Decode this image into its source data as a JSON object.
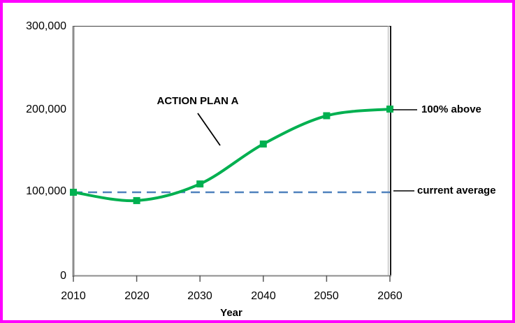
{
  "chart_data": {
    "type": "line",
    "title": "",
    "xlabel": "Year",
    "ylabel": "",
    "x": [
      2010,
      2020,
      2030,
      2040,
      2050,
      2060
    ],
    "xtick_labels": [
      "2010",
      "2020",
      "2030",
      "2040",
      "2050",
      "2060"
    ],
    "yticks": [
      0,
      100000,
      200000,
      300000
    ],
    "ytick_labels": [
      "0",
      "100,000",
      "200,000",
      "300,000"
    ],
    "ylim": [
      0,
      300000
    ],
    "xlim": [
      2010,
      2060
    ],
    "grid": false,
    "legend": "none",
    "series": [
      {
        "name": "ACTION PLAN A",
        "values": [
          100000,
          90000,
          110000,
          158000,
          192000,
          200000
        ],
        "color": "#00B050",
        "marker": "square",
        "smooth": true
      }
    ],
    "reference_line": {
      "label": "current average",
      "value": 100000,
      "color": "#4F81BD",
      "style": "dashed"
    }
  },
  "annotations": {
    "series_callout": "ACTION PLAN A",
    "top_right_callout": "100% above",
    "bottom_right_callout": "current average"
  },
  "colors": {
    "frame_border": "#FF00FF",
    "line": "#00B050",
    "dashed": "#4F81BD",
    "axis_gray": "#8c8c8c",
    "plot_border_dark": "#1a1a1a",
    "text": "#000000"
  }
}
